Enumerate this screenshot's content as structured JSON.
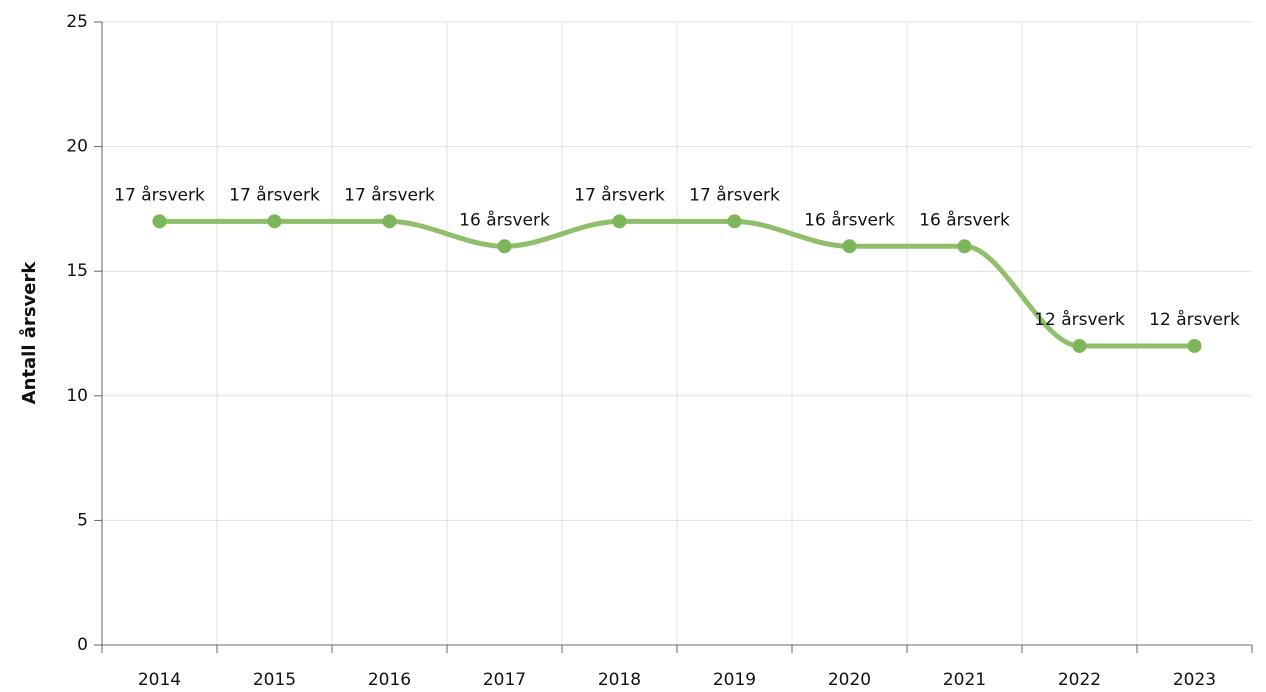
{
  "chart_data": {
    "type": "line",
    "y_label": "Antall årsverk",
    "categories": [
      "2014",
      "2015",
      "2016",
      "2017",
      "2018",
      "2019",
      "2020",
      "2021",
      "2022",
      "2023"
    ],
    "series": [
      {
        "name": "Antall årsverk",
        "color": "#8fbf6a",
        "marker_color": "#7db65a",
        "values": [
          17,
          17,
          17,
          16,
          17,
          17,
          16,
          16,
          12,
          12
        ],
        "value_labels": [
          "17 årsverk",
          "17 årsverk",
          "17 årsverk",
          "16 årsverk",
          "17 årsverk",
          "17 årsverk",
          "16 årsverk",
          "16 årsverk",
          "12 årsverk",
          "12 årsverk"
        ]
      }
    ],
    "ylim": [
      0,
      25
    ],
    "yticks": [
      0,
      5,
      10,
      15,
      20,
      25
    ],
    "grid": true,
    "smooth": true
  }
}
